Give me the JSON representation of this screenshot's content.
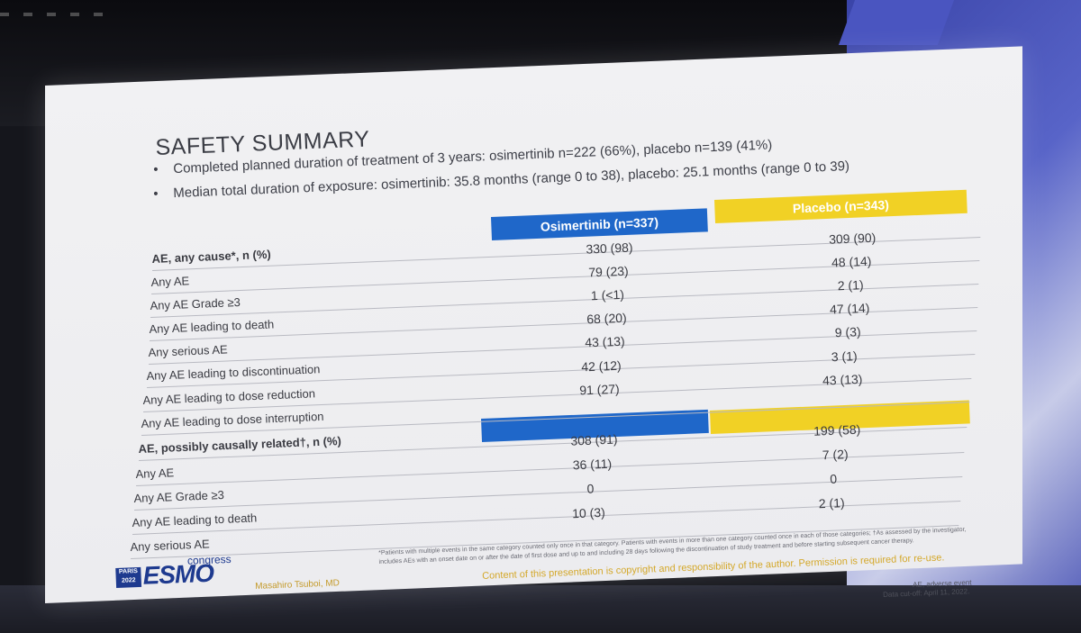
{
  "slide": {
    "title": "SAFETY SUMMARY",
    "bullets": [
      "Completed planned duration of treatment of 3 years: osimertinib n=222 (66%), placebo n=139 (41%)",
      "Median total duration of exposure: osimertinib: 35.8 months (range 0 to 38), placebo: 25.1 months (range 0 to 39)"
    ],
    "bullet_marker": "•",
    "columns": {
      "osimertinib": "Osimertinib (n=337)",
      "placebo": "Placebo (n=343)"
    },
    "rows": [
      {
        "label": "AE, any cause*, n (%)",
        "osimertinib": "",
        "placebo": "",
        "bold": true
      },
      {
        "label": "Any AE",
        "osimertinib": "330 (98)",
        "placebo": "309 (90)"
      },
      {
        "label": "Any AE Grade ≥3",
        "osimertinib": "79 (23)",
        "placebo": "48 (14)"
      },
      {
        "label": "Any AE leading to death",
        "osimertinib": "1 (<1)",
        "placebo": "2 (1)"
      },
      {
        "label": "Any serious AE",
        "osimertinib": "68 (20)",
        "placebo": "47 (14)"
      },
      {
        "label": "Any AE leading to discontinuation",
        "osimertinib": "43 (13)",
        "placebo": "9 (3)"
      },
      {
        "label": "Any AE leading to dose reduction",
        "osimertinib": "42 (12)",
        "placebo": "3 (1)"
      },
      {
        "label": "Any AE leading to dose interruption",
        "osimertinib": "91 (27)",
        "placebo": "43 (13)"
      },
      {
        "label": "AE, possibly causally related†, n (%)",
        "osimertinib": "",
        "placebo": "",
        "bold": true
      },
      {
        "label": "Any AE",
        "osimertinib": "308 (91)",
        "placebo": "199 (58)"
      },
      {
        "label": "Any AE Grade ≥3",
        "osimertinib": "36 (11)",
        "placebo": "7 (2)"
      },
      {
        "label": "Any AE leading to death",
        "osimertinib": "0",
        "placebo": "0"
      },
      {
        "label": "Any serious AE",
        "osimertinib": "10 (3)",
        "placebo": "2 (1)"
      }
    ],
    "footnote": "*Patients with multiple events in the same category counted only once in that category. Patients with events in more than one category counted once in each of those categories; †As assessed by the investigator, includes AEs with an onset date on or after the date of first dose and up to and including 28 days following the discontinuation of study treatment and before starting subsequent cancer therapy.",
    "copyright": "Content of this presentation is copyright and responsibility of the author. Permission is required for re-use.",
    "ae_note": "AE, adverse event",
    "cutoff": "Data cut-off: April 11, 2022.",
    "presenter": "Masahiro Tsuboi, MD",
    "logo": {
      "city": "PARIS",
      "year": "2022",
      "name": "ESMO",
      "suffix": "congress"
    }
  },
  "colors": {
    "osimertinib": "#1f67c9",
    "placebo": "#f1d125",
    "presenter_text": "#c49a2a"
  }
}
